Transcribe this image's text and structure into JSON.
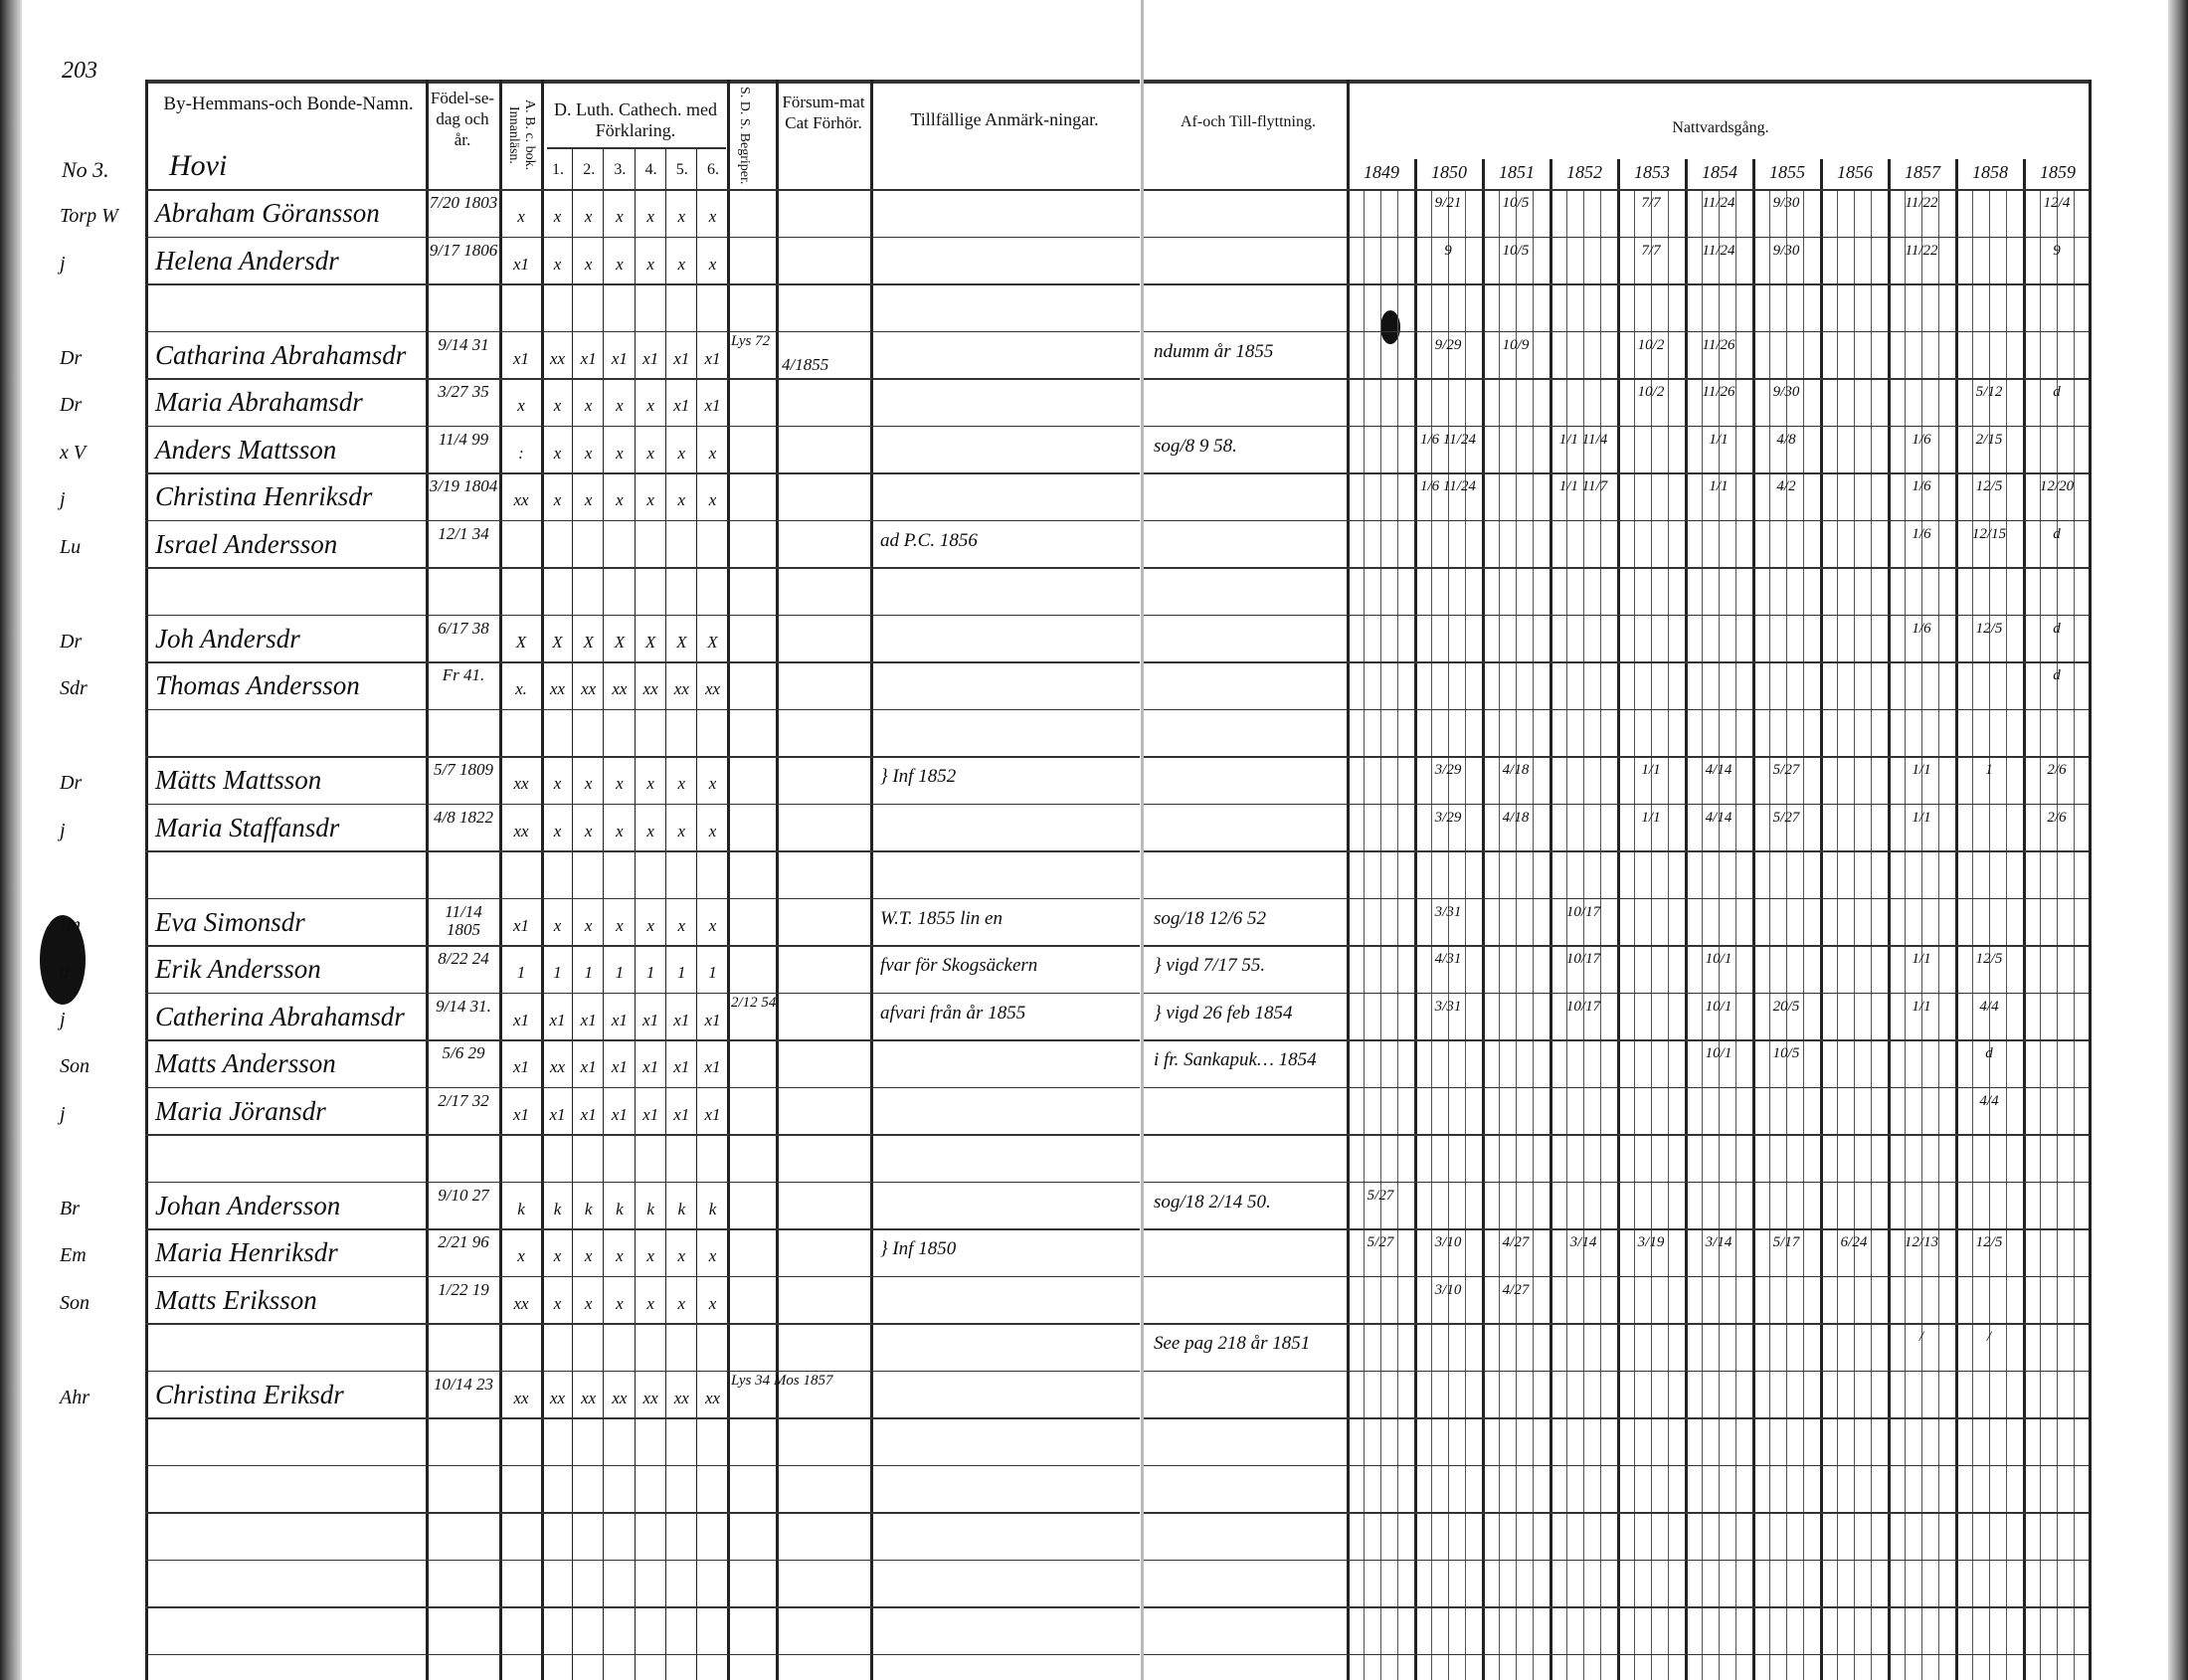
{
  "page_number": "203",
  "household_number": "No 3.",
  "village": "Hovi",
  "headers": {
    "name": "By-Hemmans-och Bonde-Namn.",
    "birth": "Födel-se-dag och år.",
    "ab": "A. B. c. bok. Innanläsn.",
    "catechism": "D. Luth. Cathech. med Förklaring.",
    "catechism_parts": [
      "1.",
      "2.",
      "3.",
      "4.",
      "5.",
      "6."
    ],
    "sds": "S. D. S. Begriper.",
    "neglected": "Försum-mat Cat Förhör.",
    "remarks": "Tillfällige Anmärk-ningar.",
    "moving": "Af-och Till-flyttning.",
    "communion": "Nattvardsgång.",
    "years": [
      "1849",
      "1850",
      "1851",
      "1852",
      "1853",
      "1854",
      "1855",
      "1856",
      "1857",
      "1858",
      "1859"
    ]
  },
  "rows": [
    {
      "prefix": "Torp W",
      "name": "Abraham Göransson",
      "birth": "7/20 1803",
      "ab": "x",
      "cat": [
        "x",
        "x",
        "x",
        "x",
        "x",
        "x"
      ],
      "communion": {
        "1850": "9/21",
        "1851": "10/5",
        "1853": "7/7",
        "1854": "11/24",
        "1855": "9/30",
        "1857": "11/22",
        "1859": "12/4"
      }
    },
    {
      "prefix": "j",
      "name": "Helena Andersdr",
      "birth": "9/17 1806",
      "ab": "x1",
      "cat": [
        "x",
        "x",
        "x",
        "x",
        "x",
        "x"
      ],
      "communion": {
        "1850": "9",
        "1851": "10/5",
        "1853": "7/7",
        "1854": "11/24",
        "1855": "9/30",
        "1857": "11/22",
        "1859": "9"
      }
    },
    {},
    {
      "prefix": "Dr",
      "name": "Catharina Abrahamsdr",
      "birth": "9/14 31",
      "ab": "x1",
      "cat": [
        "xx",
        "x1",
        "x1",
        "x1",
        "x1",
        "x1"
      ],
      "sds": "Lys 72",
      "neglected": "4/1855",
      "moving": "ndumm år 1855",
      "communion": {
        "1850": "9/29",
        "1851": "10/9",
        "1853": "10/2",
        "1854": "11/26"
      }
    },
    {
      "prefix": "Dr",
      "name": "Maria Abrahamsdr",
      "birth": "3/27 35",
      "ab": "x",
      "cat": [
        "x",
        "x",
        "x",
        "x",
        "x1",
        "x1"
      ],
      "communion": {
        "1853": "10/2",
        "1854": "11/26",
        "1855": "9/30",
        "1858": "5/12",
        "1859": "d"
      }
    },
    {
      "prefix": "x V",
      "name": "Anders Mattsson",
      "birth": "11/4 99",
      "ab": ":",
      "cat": [
        "x",
        "x",
        "x",
        "x",
        "x",
        "x"
      ],
      "moving": "sog/8 9 58.",
      "communion": {
        "1850": "1/6 11/24",
        "1852": "1/1 11/4",
        "1854": "1/1",
        "1855": "4/8",
        "1857": "1/6",
        "1858": "2/15"
      }
    },
    {
      "prefix": "j",
      "name": "Christina Henriksdr",
      "birth": "3/19 1804",
      "ab": "xx",
      "cat": [
        "x",
        "x",
        "x",
        "x",
        "x",
        "x"
      ],
      "communion": {
        "1850": "1/6 11/24",
        "1852": "1/1 11/7",
        "1854": "1/1",
        "1855": "4/2",
        "1857": "1/6",
        "1858": "12/5",
        "1859": "12/20"
      }
    },
    {
      "prefix": "Lu",
      "name": "Israel Andersson",
      "birth": "12/1 34",
      "remarks": "ad P.C. 1856",
      "communion": {
        "1857": "1/6",
        "1858": "12/15",
        "1859": "d"
      }
    },
    {},
    {
      "prefix": "Dr",
      "name": "Joh Andersdr",
      "birth": "6/17 38",
      "ab": "X",
      "cat": [
        "X",
        "X",
        "X",
        "X",
        "X",
        "X"
      ],
      "communion": {
        "1857": "1/6",
        "1858": "12/5",
        "1859": "d"
      }
    },
    {
      "prefix": "Sdr",
      "name": "Thomas Andersson",
      "birth": "Fr 41.",
      "ab": "x.",
      "cat": [
        "xx",
        "xx",
        "xx",
        "xx",
        "xx",
        "xx"
      ],
      "communion": {
        "1859": "d"
      }
    },
    {},
    {
      "prefix": "Dr",
      "name": "Mätts Mattsson",
      "birth": "5/7 1809",
      "ab": "xx",
      "cat": [
        "x",
        "x",
        "x",
        "x",
        "x",
        "x"
      ],
      "remarks": "} Inf 1852",
      "communion": {
        "1850": "3/29",
        "1851": "4/18",
        "1853": "1/1",
        "1854": "4/14",
        "1855": "5/27",
        "1857": "1/1",
        "1858": "1",
        "1859": "2/6"
      }
    },
    {
      "prefix": "j",
      "name": "Maria Staffansdr",
      "birth": "4/8 1822",
      "ab": "xx",
      "cat": [
        "x",
        "x",
        "x",
        "x",
        "x",
        "x"
      ],
      "communion": {
        "1850": "3/29",
        "1851": "4/18",
        "1853": "1/1",
        "1854": "4/14",
        "1855": "5/27",
        "1857": "1/1",
        "1859": "2/6"
      }
    },
    {},
    {
      "prefix": "Im",
      "name": "Eva Simonsdr",
      "birth": "11/14 1805",
      "ab": "x1",
      "cat": [
        "x",
        "x",
        "x",
        "x",
        "x",
        "x"
      ],
      "remarks": "W.T. 1855 lin en",
      "moving": "sog/18 12/6 52",
      "communion": {
        "1850": "3/31",
        "1852": "10/17"
      }
    },
    {
      "prefix": "a",
      "name": "Erik Andersson",
      "birth": "8/22 24",
      "ab": "1",
      "cat": [
        "1",
        "1",
        "1",
        "1",
        "1",
        "1"
      ],
      "sds": "",
      "remarks": "fvar för Skogsäckern",
      "moving": "} vigd 7/17 55.",
      "communion": {
        "1850": "4/31",
        "1852": "10/17",
        "1854": "10/1",
        "1857": "1/1",
        "1858": "12/5"
      }
    },
    {
      "prefix": "j",
      "name": "Catherina Abrahamsdr",
      "birth": "9/14 31.",
      "ab": "x1",
      "cat": [
        "x1",
        "x1",
        "x1",
        "x1",
        "x1",
        "x1"
      ],
      "sds": "2/12 54",
      "remarks": "afvari från år 1855",
      "moving": "} vigd 26 feb 1854",
      "communion": {
        "1850": "3/31",
        "1852": "10/17",
        "1854": "10/1",
        "1855": "20/5",
        "1857": "1/1",
        "1858": "4/4"
      }
    },
    {
      "prefix": "Son",
      "name": "Matts Andersson",
      "birth": "5/6 29",
      "ab": "x1",
      "cat": [
        "xx",
        "x1",
        "x1",
        "x1",
        "x1",
        "x1"
      ],
      "moving": "i fr. Sankapuk… 1854",
      "communion": {
        "1854": "10/1",
        "1855": "10/5",
        "1858": "d"
      }
    },
    {
      "prefix": "j",
      "name": "Maria Jöransdr",
      "birth": "2/17 32",
      "ab": "x1",
      "cat": [
        "x1",
        "x1",
        "x1",
        "x1",
        "x1",
        "x1"
      ],
      "communion": {
        "1858": "4/4"
      }
    },
    {},
    {
      "prefix": "Br",
      "name": "Johan Andersson",
      "birth": "9/10 27",
      "ab": "k",
      "cat": [
        "k",
        "k",
        "k",
        "k",
        "k",
        "k"
      ],
      "moving": "sog/18 2/14 50.",
      "communion": {
        "1849": "5/27"
      }
    },
    {
      "prefix": "Em",
      "name": "Maria Henriksdr",
      "birth": "2/21 96",
      "ab": "x",
      "cat": [
        "x",
        "x",
        "x",
        "x",
        "x",
        "x"
      ],
      "remarks": "} Inf 1850",
      "communion": {
        "1849": "5/27",
        "1850": "3/10",
        "1851": "4/27",
        "1852": "3/14",
        "1853": "3/19",
        "1854": "3/14",
        "1855": "5/17",
        "1856": "6/24",
        "1857": "12/13",
        "1858": "12/5"
      }
    },
    {
      "prefix": "Son",
      "name": "Matts Eriksson",
      "birth": "1/22 19",
      "ab": "xx",
      "cat": [
        "x",
        "x",
        "x",
        "x",
        "x",
        "x"
      ],
      "communion": {
        "1850": "3/10",
        "1851": "4/27"
      }
    },
    {
      "prefix": "",
      "name": "",
      "moving": "See pag 218 år 1851",
      "communion": {
        "1857": "/",
        "1858": "/"
      }
    },
    {
      "prefix": "Ahr",
      "name": "Christina Eriksdr",
      "birth": "10/14 23",
      "ab": "xx",
      "cat": [
        "xx",
        "xx",
        "xx",
        "xx",
        "xx",
        "xx"
      ],
      "sds": "Lys 34 Mos 1857"
    },
    {},
    {},
    {},
    {},
    {},
    {}
  ]
}
